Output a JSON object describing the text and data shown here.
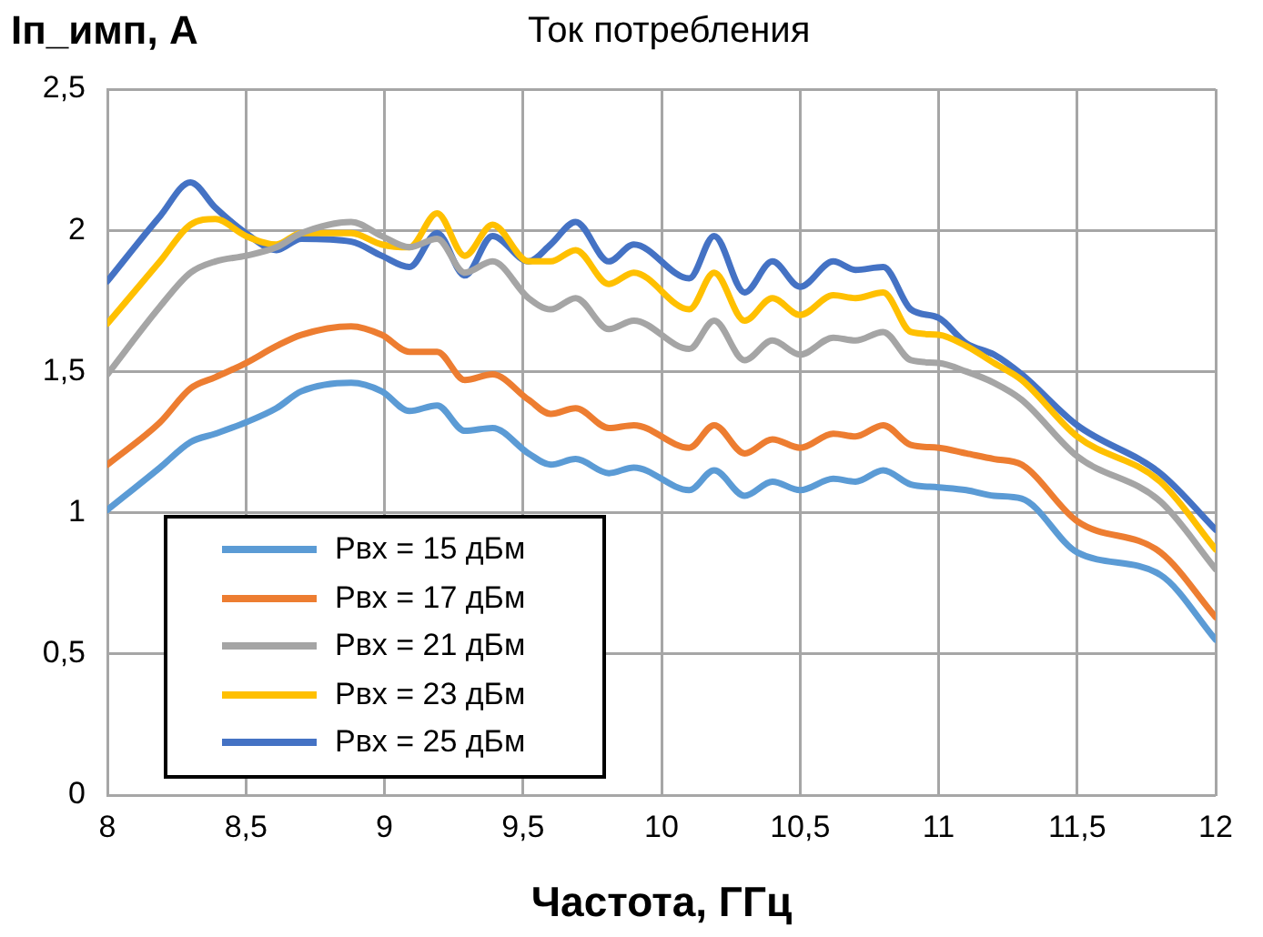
{
  "chart_data": {
    "type": "line",
    "title": "Ток потребления",
    "ylabel": "Iп_имп, А",
    "xlabel": "Частота, ГГц",
    "x": [
      8.0,
      8.19,
      8.3,
      8.39,
      8.5,
      8.61,
      8.7,
      8.88,
      8.99,
      9.09,
      9.19,
      9.29,
      9.39,
      9.52,
      9.6,
      9.69,
      9.81,
      9.9,
      10.1,
      10.19,
      10.3,
      10.4,
      10.5,
      10.62,
      10.7,
      10.8,
      10.9,
      11.0,
      11.1,
      11.2,
      11.3,
      11.5,
      11.8,
      12.0
    ],
    "series": [
      {
        "name": "Pвх = 15 дБм",
        "color": "#5b9bd5",
        "values": [
          1.01,
          1.16,
          1.25,
          1.28,
          1.32,
          1.37,
          1.43,
          1.46,
          1.43,
          1.36,
          1.38,
          1.29,
          1.3,
          1.21,
          1.17,
          1.19,
          1.14,
          1.16,
          1.08,
          1.15,
          1.06,
          1.11,
          1.08,
          1.12,
          1.11,
          1.15,
          1.1,
          1.09,
          1.08,
          1.06,
          1.05,
          0.86,
          0.78,
          0.55
        ]
      },
      {
        "name": "Pвх = 17 дБм",
        "color": "#ed7d31",
        "values": [
          1.17,
          1.32,
          1.44,
          1.48,
          1.53,
          1.59,
          1.63,
          1.66,
          1.63,
          1.57,
          1.57,
          1.47,
          1.49,
          1.4,
          1.35,
          1.37,
          1.3,
          1.31,
          1.23,
          1.31,
          1.21,
          1.26,
          1.23,
          1.28,
          1.27,
          1.31,
          1.24,
          1.23,
          1.21,
          1.19,
          1.17,
          0.97,
          0.86,
          0.63
        ]
      },
      {
        "name": "Pвх = 21 дБм",
        "color": "#a5a5a5",
        "values": [
          1.49,
          1.73,
          1.85,
          1.89,
          1.91,
          1.94,
          1.99,
          2.03,
          1.98,
          1.94,
          1.97,
          1.85,
          1.89,
          1.76,
          1.72,
          1.76,
          1.65,
          1.68,
          1.58,
          1.68,
          1.54,
          1.61,
          1.56,
          1.62,
          1.61,
          1.64,
          1.54,
          1.53,
          1.5,
          1.46,
          1.4,
          1.2,
          1.04,
          0.8
        ]
      },
      {
        "name": "Pвх = 23 дБм",
        "color": "#ffc000",
        "values": [
          1.67,
          1.89,
          2.02,
          2.04,
          1.98,
          1.95,
          1.99,
          1.99,
          1.95,
          1.94,
          2.06,
          1.91,
          2.02,
          1.89,
          1.89,
          1.93,
          1.81,
          1.85,
          1.72,
          1.85,
          1.68,
          1.76,
          1.7,
          1.77,
          1.76,
          1.78,
          1.64,
          1.63,
          1.59,
          1.53,
          1.47,
          1.27,
          1.11,
          0.87
        ]
      },
      {
        "name": "Pвх = 25 дБм",
        "color": "#4472c4",
        "values": [
          1.82,
          2.05,
          2.17,
          2.08,
          1.99,
          1.93,
          1.97,
          1.96,
          1.91,
          1.87,
          1.99,
          1.84,
          1.98,
          1.89,
          1.95,
          2.03,
          1.89,
          1.95,
          1.83,
          1.98,
          1.78,
          1.89,
          1.8,
          1.89,
          1.86,
          1.87,
          1.72,
          1.69,
          1.6,
          1.56,
          1.49,
          1.31,
          1.14,
          0.94
        ]
      }
    ],
    "xlim": [
      8,
      12
    ],
    "xticks": [
      8,
      {
        "value": 8.5,
        "label": "8,5"
      },
      9,
      {
        "value": 9.5,
        "label": "9,5"
      },
      10,
      {
        "value": 10.5,
        "label": "10,5"
      },
      11,
      {
        "value": 11.5,
        "label": "11,5"
      },
      12
    ],
    "ylim": [
      0,
      2.5
    ],
    "yticks": [
      0,
      {
        "value": 0.5,
        "label": "0,5"
      },
      1,
      {
        "value": 1.5,
        "label": "1,5"
      },
      2,
      {
        "value": 2.5,
        "label": "2,5"
      }
    ],
    "grid": true,
    "legend": "bottom left",
    "line_style": "solid",
    "marker": "none"
  }
}
